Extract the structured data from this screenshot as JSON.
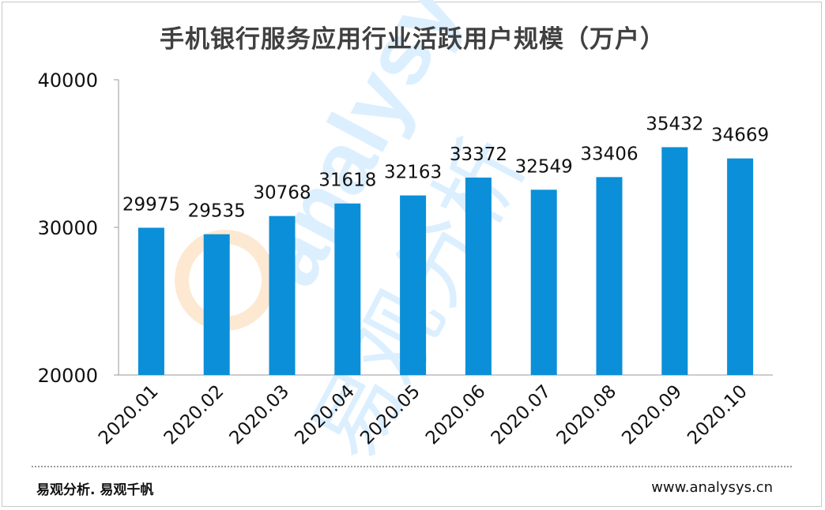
{
  "chart_data": {
    "type": "bar",
    "title": "手机银行服务应用行业活跃用户规模（万户）",
    "categories": [
      "2020.01",
      "2020.02",
      "2020.03",
      "2020.04",
      "2020.05",
      "2020.06",
      "2020.07",
      "2020.08",
      "2020.09",
      "2020.10"
    ],
    "values": [
      29975,
      29535,
      30768,
      31618,
      32163,
      33372,
      32549,
      33406,
      35432,
      34669
    ],
    "ylim": [
      20000,
      40000
    ],
    "yticks": [
      20000,
      30000,
      40000
    ],
    "xlabel": "",
    "ylabel": "",
    "bar_color": "#0b8fd8",
    "grid": false,
    "legend": "none"
  },
  "watermark": {
    "latin": "analysys",
    "chinese": "易观分析",
    "colors": {
      "blue": "#dcefff",
      "orange": "#fde8d2"
    }
  },
  "footer": {
    "left": "易观分析. 易观千帆",
    "right": "www.analysys.cn"
  }
}
